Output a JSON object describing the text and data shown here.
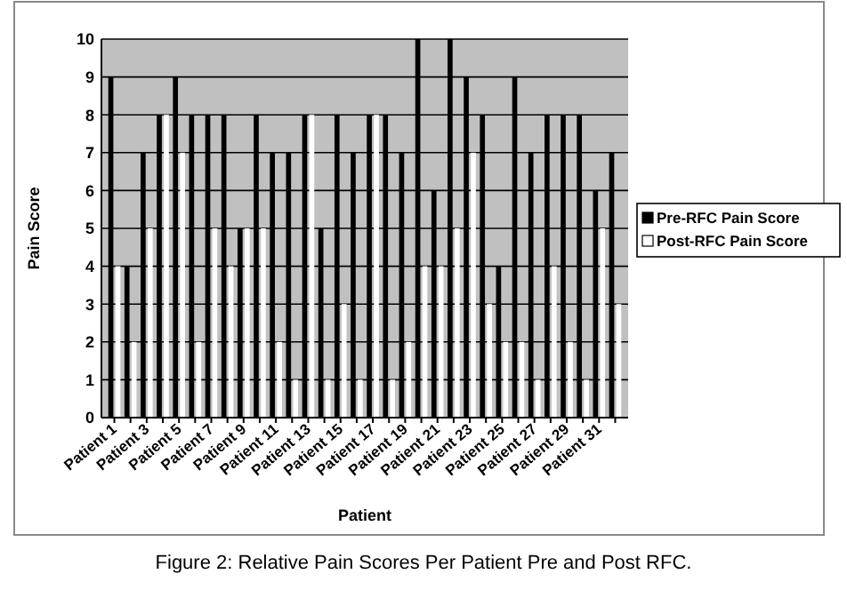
{
  "chart_data": {
    "type": "bar",
    "xlabel": "Patient",
    "ylabel": "Pain Score",
    "categories": [
      "Patient 1",
      null,
      "Patient 3",
      null,
      "Patient 5",
      null,
      "Patient 7",
      null,
      "Patient 9",
      null,
      "Patient 11",
      null,
      "Patient 13",
      null,
      "Patient 15",
      null,
      "Patient 17",
      null,
      "Patient 19",
      null,
      "Patient 21",
      null,
      "Patient 23",
      null,
      "Patient 25",
      null,
      "Patient 27",
      null,
      "Patient 29",
      null,
      "Patient 31",
      null
    ],
    "series": [
      {
        "name": "Pre-RFC Pain Score",
        "color": "#000000",
        "values": [
          9,
          4,
          7,
          8,
          9,
          8,
          8,
          8,
          5,
          8,
          7,
          7,
          8,
          5,
          8,
          7,
          8,
          8,
          7,
          10,
          6,
          10,
          9,
          8,
          4,
          9,
          7,
          8,
          8,
          8,
          6,
          7
        ]
      },
      {
        "name": "Post-RFC Pain Score",
        "color": "#ffffff",
        "values": [
          4,
          2,
          5,
          8,
          7,
          2,
          5,
          4,
          5,
          5,
          2,
          1,
          8,
          1,
          3,
          1,
          8,
          1,
          2,
          4,
          4,
          5,
          7,
          3,
          2,
          2,
          1,
          4,
          2,
          1,
          5,
          3
        ]
      }
    ],
    "ylim": [
      0,
      10
    ],
    "yticks": [
      0,
      1,
      2,
      3,
      4,
      5,
      6,
      7,
      8,
      9,
      10
    ],
    "grid": "y",
    "legend": "right",
    "annotations": [
      "Figure 2: Relative Pain Scores Per Patient Pre and Post RFC."
    ]
  }
}
